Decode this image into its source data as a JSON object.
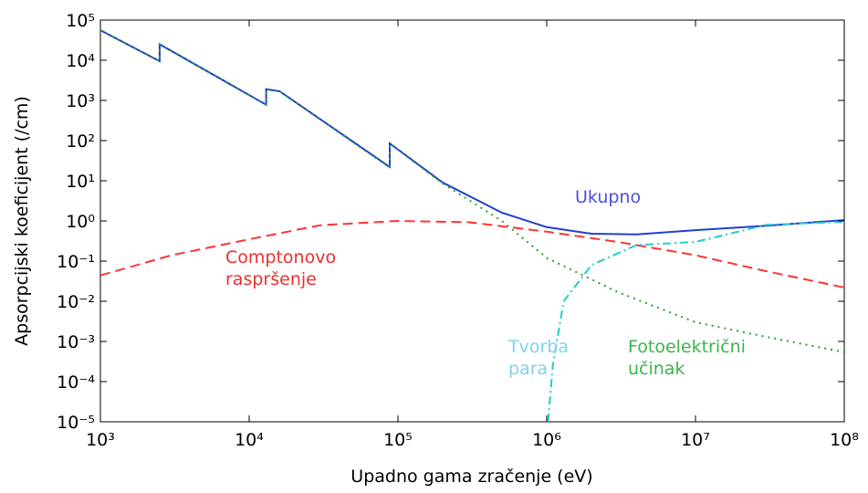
{
  "chart_data": {
    "type": "line",
    "xlabel": "Upadno gama zračenje (eV)",
    "ylabel": "Apsorpcijski koeficijent (/cm)",
    "log_x": true,
    "log_y": true,
    "xlim": [
      1000,
      100000000
    ],
    "ylim": [
      1e-05,
      100000
    ],
    "xticks": [
      {
        "value": 1000,
        "label": "10³"
      },
      {
        "value": 10000,
        "label": "10⁴"
      },
      {
        "value": 100000,
        "label": "10⁵"
      },
      {
        "value": 1000000,
        "label": "10⁶"
      },
      {
        "value": 10000000,
        "label": "10⁷"
      },
      {
        "value": 100000000,
        "label": "10⁸"
      }
    ],
    "yticks": [
      {
        "value": 1e-05,
        "label": "10⁻⁵"
      },
      {
        "value": 0.0001,
        "label": "10⁻⁴"
      },
      {
        "value": 0.001,
        "label": "10⁻³"
      },
      {
        "value": 0.01,
        "label": "10⁻²"
      },
      {
        "value": 0.1,
        "label": "10⁻¹"
      },
      {
        "value": 1,
        "label": "10⁰"
      },
      {
        "value": 10,
        "label": "10¹"
      },
      {
        "value": 100,
        "label": "10²"
      },
      {
        "value": 1000,
        "label": "10³"
      },
      {
        "value": 10000,
        "label": "10⁴"
      },
      {
        "value": 100000,
        "label": "10⁵"
      }
    ],
    "series": [
      {
        "name": "Ukupno",
        "color": "#1f3fd0",
        "style": "solid",
        "x": [
          1000,
          2500,
          2500,
          13000,
          13000,
          16000,
          88000,
          88000,
          200000,
          500000,
          1000000,
          2000000,
          4000000,
          10000000,
          30000000,
          100000000
        ],
        "values": [
          56000,
          9500,
          25000,
          780,
          1900,
          1700,
          22,
          85,
          9,
          1.6,
          0.7,
          0.48,
          0.46,
          0.59,
          0.76,
          1.05
        ]
      },
      {
        "name": "Comptonovo raspršenje",
        "color": "#ff3333",
        "style": "dashed",
        "x": [
          1000,
          3000,
          10000,
          30000,
          100000,
          300000,
          1000000,
          3000000,
          10000000,
          30000000,
          100000000
        ],
        "values": [
          0.044,
          0.14,
          0.35,
          0.78,
          1.0,
          0.93,
          0.54,
          0.3,
          0.14,
          0.056,
          0.022
        ]
      },
      {
        "name": "Fotoelektrični učinak",
        "color": "#2ca02c",
        "style": "dotted",
        "x": [
          1000,
          2500,
          2500,
          13000,
          13000,
          16000,
          88000,
          88000,
          200000,
          500000,
          1000000,
          3000000,
          10000000,
          30000000,
          100000000
        ],
        "values": [
          56000,
          9500,
          25000,
          780,
          1900,
          1700,
          21,
          84,
          8.5,
          1.0,
          0.12,
          0.017,
          0.003,
          0.0013,
          0.00054
        ]
      },
      {
        "name": "Tvorba para",
        "color": "#22cccc",
        "style": "dashdot",
        "x": [
          1020000,
          1100000,
          1300000,
          2000000,
          4000000,
          10000000,
          30000000,
          100000000
        ],
        "values": [
          1e-05,
          0.00025,
          0.01,
          0.08,
          0.25,
          0.3,
          0.8,
          0.95
        ]
      }
    ]
  }
}
